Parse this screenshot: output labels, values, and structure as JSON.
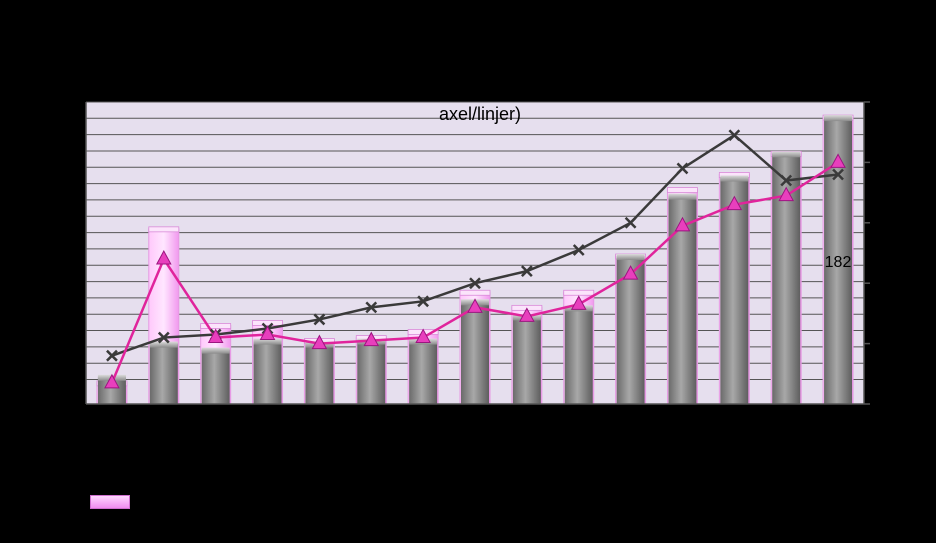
{
  "chart_data": {
    "type": "bar",
    "title": "axel/linjer)",
    "colors": {
      "plot_background": "#e6dfee",
      "gridline": "#555555",
      "bar_back": "#f7b2f5",
      "bar_front": "#7a7a7a",
      "magenta_line": "#e0249c",
      "dark_line": "#3a3a3a"
    },
    "ylim": [
      0,
      100
    ],
    "grid": true,
    "categories": [
      "",
      "",
      "",
      "",
      "",
      "",
      "",
      "",
      "",
      "",
      "",
      "",
      "",
      "",
      ""
    ],
    "series": [
      {
        "kind": "bar-back",
        "values": [
          7,
          58,
          26,
          27,
          21,
          22,
          24,
          37,
          32,
          37,
          49,
          71,
          76,
          83,
          95
        ]
      },
      {
        "kind": "bar-front",
        "values": [
          9,
          20,
          18,
          21,
          20,
          21,
          21,
          34,
          29,
          32,
          49,
          69,
          75,
          83,
          95
        ]
      },
      {
        "kind": "line-triangle",
        "values": [
          7,
          48,
          22,
          23,
          20,
          21,
          22,
          32,
          29,
          33,
          43,
          59,
          66,
          69,
          80
        ]
      },
      {
        "kind": "line-cross",
        "values": [
          16,
          22,
          23,
          25,
          28,
          32,
          34,
          40,
          44,
          51,
          60,
          78,
          89,
          74,
          76
        ]
      }
    ],
    "annotations": [
      {
        "text": "182"
      }
    ]
  },
  "legend": {
    "swatch_color": "#f7b2f5"
  }
}
